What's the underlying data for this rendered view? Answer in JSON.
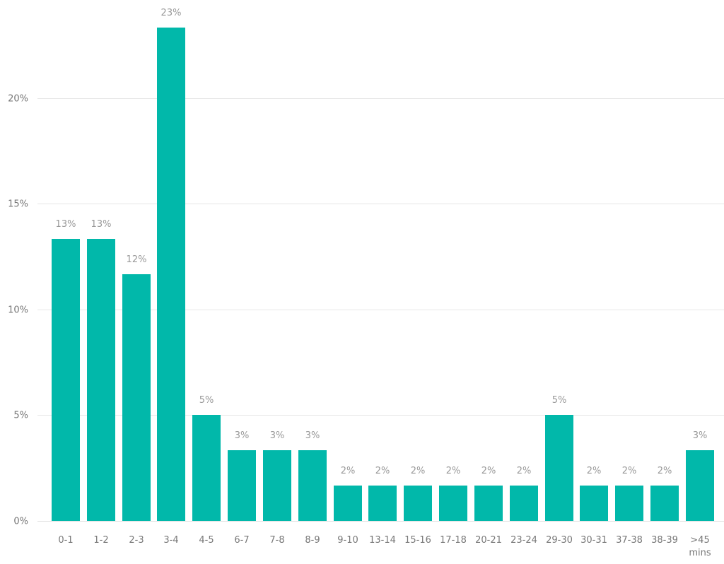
{
  "chart_data": {
    "type": "bar",
    "title": "",
    "xlabel": "",
    "ylabel": "",
    "ylim": [
      0,
      24
    ],
    "yticks": [
      "0%",
      "5%",
      "10%",
      "15%",
      "20%"
    ],
    "ytick_values": [
      0,
      5,
      10,
      15,
      20
    ],
    "grid": true,
    "legend": null,
    "bar_color": "#01B8AA",
    "categories": [
      "0-1",
      "1-2",
      "2-3",
      "3-4",
      "4-5",
      "6-7",
      "7-8",
      "8-9",
      "9-10",
      "13-14",
      "15-16",
      "17-18",
      "20-21",
      "23-24",
      "29-30",
      "30-31",
      "37-38",
      "38-39",
      ">45 mins"
    ],
    "values": [
      13.33,
      13.33,
      11.67,
      23.33,
      5.0,
      3.33,
      3.33,
      3.33,
      1.67,
      1.67,
      1.67,
      1.67,
      1.67,
      1.67,
      5.0,
      1.67,
      1.67,
      1.67,
      3.33
    ],
    "data_labels": [
      "13%",
      "13%",
      "12%",
      "23%",
      "5%",
      "3%",
      "3%",
      "3%",
      "2%",
      "2%",
      "2%",
      "2%",
      "2%",
      "2%",
      "5%",
      "2%",
      "2%",
      "2%",
      "3%"
    ]
  }
}
